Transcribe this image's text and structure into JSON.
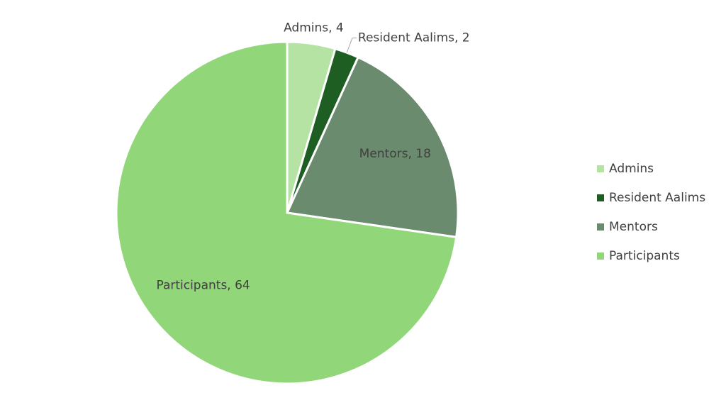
{
  "chart_data": {
    "type": "pie",
    "categories": [
      "Admins",
      "Resident Aalims",
      "Mentors",
      "Participants"
    ],
    "values": [
      4,
      2,
      18,
      64
    ],
    "value_labels": [
      "Admins, 4",
      "Resident Aalims, 2",
      "Mentors, 18",
      "Participants, 64"
    ],
    "colors": [
      "#b5e3a3",
      "#1e5e22",
      "#6a8b6d",
      "#92d67a"
    ],
    "legend": "right"
  }
}
